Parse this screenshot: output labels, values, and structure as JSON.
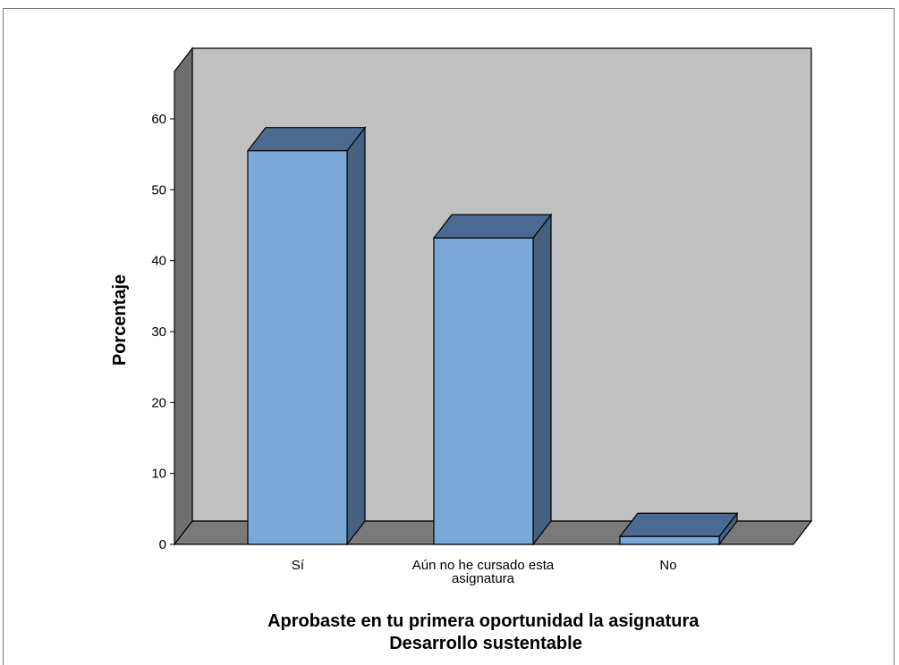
{
  "chart_data": {
    "type": "bar",
    "style": "3d",
    "title": "",
    "categories": [
      "Sí",
      "Aún no he cursado esta asignatura",
      "No"
    ],
    "category_label_lines": [
      [
        "Sí"
      ],
      [
        "Aún no he cursado esta",
        "asignatura"
      ],
      [
        "No"
      ]
    ],
    "values": [
      55.5,
      43.2,
      1.1
    ],
    "ylabel": "Porcentaje",
    "xlabel_lines": [
      "Aprobaste en tu primera oportunidad la asignatura",
      "Desarrollo sustentable"
    ],
    "yticks": [
      0,
      10,
      20,
      30,
      40,
      50,
      60
    ],
    "ylim": [
      0,
      60
    ],
    "grid": false,
    "legend": "none",
    "colors": {
      "bar_front": "#7aa9d8",
      "bar_top": "#4a6a92",
      "bar_side": "#46607f",
      "back_wall": "#c0c0c0",
      "side_wall": "#6f6f6f",
      "floor": "#7a7a7a",
      "outline": "#000000"
    }
  }
}
